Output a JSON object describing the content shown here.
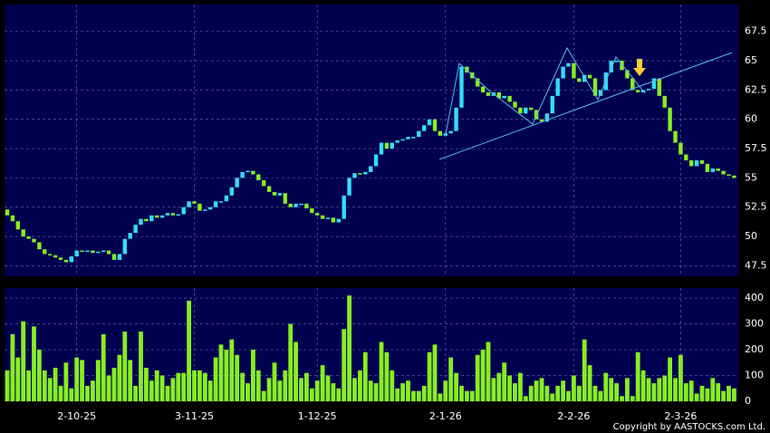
{
  "chart_data": [
    {
      "type": "candlestick",
      "categories": [
        null,
        null,
        null,
        null,
        null,
        null,
        null,
        null,
        null,
        null,
        null,
        null,
        null,
        "2-10-25",
        null,
        null,
        null,
        null,
        null,
        null,
        null,
        null,
        null,
        null,
        null,
        null,
        null,
        null,
        null,
        null,
        null,
        null,
        null,
        null,
        null,
        "3-11-25",
        null,
        null,
        null,
        null,
        null,
        null,
        null,
        null,
        null,
        null,
        null,
        null,
        null,
        null,
        null,
        null,
        null,
        null,
        null,
        null,
        null,
        null,
        "1-12-25",
        null,
        null,
        null,
        null,
        null,
        null,
        null,
        null,
        null,
        null,
        null,
        null,
        null,
        null,
        null,
        null,
        null,
        null,
        null,
        null,
        null,
        null,
        null,
        "2-1-26",
        null,
        null,
        null,
        null,
        null,
        null,
        null,
        null,
        null,
        null,
        null,
        null,
        null,
        null,
        null,
        null,
        null,
        null,
        null,
        null,
        null,
        null,
        null,
        "2-2-26",
        null,
        null,
        null,
        null,
        null,
        null,
        null,
        null,
        null,
        null,
        null,
        null,
        null,
        null,
        null,
        null,
        null,
        null,
        null,
        "2-3-26",
        null,
        null,
        null,
        null,
        null,
        null,
        null,
        null,
        null,
        null
      ],
      "open": [
        52.3,
        51.8,
        51.3,
        50.6,
        50.0,
        49.8,
        49.5,
        48.9,
        48.5,
        48.4,
        48.2,
        48.0,
        47.8,
        48.3,
        48.8,
        48.7,
        48.8,
        48.6,
        48.7,
        48.8,
        48.5,
        48.0,
        48.5,
        49.8,
        50.3,
        51.0,
        51.5,
        51.3,
        51.8,
        51.6,
        51.8,
        52.0,
        51.8,
        51.9,
        52.5,
        53.0,
        52.8,
        52.2,
        52.3,
        52.5,
        53.0,
        53.0,
        53.5,
        54.2,
        55.0,
        55.5,
        55.6,
        55.3,
        54.8,
        54.3,
        53.8,
        53.5,
        53.7,
        52.8,
        52.5,
        52.8,
        52.8,
        52.4,
        52.0,
        51.8,
        51.5,
        51.6,
        51.2,
        51.5,
        53.5,
        55.0,
        55.4,
        55.3,
        55.5,
        56.0,
        57.0,
        58.0,
        57.5,
        58.0,
        58.2,
        58.3,
        58.5,
        58.5,
        59.0,
        59.5,
        60.0,
        59.0,
        58.6,
        58.8,
        59.0,
        61.0,
        64.5,
        64.0,
        63.5,
        62.8,
        62.3,
        62.0,
        62.3,
        61.8,
        62.0,
        61.5,
        61.0,
        60.5,
        61.0,
        60.8,
        60.0,
        59.8,
        60.5,
        62.0,
        63.5,
        64.5,
        64.8,
        63.5,
        63.2,
        63.8,
        63.5,
        62.0,
        62.5,
        64.0,
        65.0,
        65.0,
        64.2,
        63.5,
        62.5,
        62.3,
        62.5,
        62.6,
        63.5,
        62.0,
        61.0,
        59.0,
        58.0,
        57.0,
        56.5,
        56.0,
        56.5,
        56.2,
        55.5,
        55.8,
        55.6,
        55.3,
        55.2
      ],
      "close": [
        51.8,
        51.3,
        50.6,
        50.0,
        49.8,
        49.5,
        48.9,
        48.5,
        48.4,
        48.2,
        48.0,
        47.8,
        48.3,
        48.8,
        48.7,
        48.8,
        48.6,
        48.7,
        48.8,
        48.5,
        48.0,
        48.5,
        49.8,
        50.3,
        51.0,
        51.5,
        51.3,
        51.8,
        51.6,
        51.8,
        52.0,
        51.8,
        51.9,
        52.5,
        53.0,
        52.8,
        52.2,
        52.3,
        52.5,
        53.0,
        53.0,
        53.5,
        54.2,
        55.0,
        55.5,
        55.6,
        55.3,
        54.8,
        54.3,
        53.8,
        53.5,
        53.7,
        52.8,
        52.5,
        52.8,
        52.8,
        52.4,
        52.0,
        51.8,
        51.5,
        51.6,
        51.2,
        51.5,
        53.5,
        55.0,
        55.4,
        55.3,
        55.5,
        56.0,
        57.0,
        58.0,
        57.5,
        58.0,
        58.2,
        58.3,
        58.5,
        58.5,
        59.0,
        59.5,
        60.0,
        59.0,
        58.6,
        58.8,
        59.0,
        61.0,
        64.5,
        64.0,
        63.5,
        62.8,
        62.3,
        62.0,
        62.3,
        61.8,
        62.0,
        61.5,
        61.0,
        60.5,
        61.0,
        60.8,
        60.0,
        59.8,
        60.5,
        62.0,
        63.5,
        64.5,
        64.8,
        63.5,
        63.2,
        63.8,
        63.5,
        62.0,
        62.5,
        64.0,
        65.0,
        65.0,
        64.2,
        63.5,
        62.5,
        62.3,
        62.5,
        62.6,
        63.5,
        62.0,
        61.0,
        59.0,
        58.0,
        57.0,
        56.5,
        56.0,
        56.5,
        56.2,
        55.5,
        55.8,
        55.6,
        55.3,
        55.2,
        55.0
      ],
      "up_color": "#33ddff",
      "down_color": "#88ee22",
      "ylim": [
        46.6,
        69.8
      ],
      "yticks": [
        47.5,
        50,
        52.5,
        55,
        57.5,
        60,
        62.5,
        65,
        67.5
      ],
      "grid": true
    },
    {
      "type": "bar",
      "values": [
        120,
        260,
        170,
        310,
        120,
        290,
        200,
        120,
        90,
        130,
        60,
        150,
        50,
        170,
        160,
        60,
        80,
        160,
        260,
        100,
        130,
        180,
        270,
        160,
        60,
        270,
        130,
        80,
        120,
        100,
        60,
        90,
        110,
        110,
        390,
        120,
        120,
        110,
        80,
        170,
        220,
        200,
        240,
        180,
        110,
        70,
        200,
        120,
        40,
        90,
        150,
        80,
        120,
        300,
        230,
        90,
        110,
        50,
        80,
        140,
        100,
        70,
        50,
        280,
        410,
        90,
        120,
        190,
        80,
        70,
        230,
        190,
        120,
        50,
        70,
        80,
        40,
        40,
        60,
        190,
        220,
        30,
        80,
        170,
        110,
        60,
        40,
        40,
        180,
        200,
        230,
        90,
        110,
        150,
        100,
        70,
        110,
        20,
        60,
        80,
        90,
        60,
        30,
        60,
        80,
        40,
        100,
        60,
        240,
        140,
        60,
        40,
        110,
        90,
        70,
        20,
        90,
        20,
        190,
        120,
        90,
        70,
        90,
        100,
        170,
        90,
        180,
        70,
        80,
        30,
        60,
        50,
        90,
        70,
        40,
        60,
        50
      ],
      "color": "#88ee22",
      "ylim": [
        0,
        439
      ],
      "yticks": [
        0,
        100,
        200,
        300,
        400
      ],
      "grid": true
    }
  ],
  "copyright": "Copyright by AASTOCKS.com Ltd."
}
